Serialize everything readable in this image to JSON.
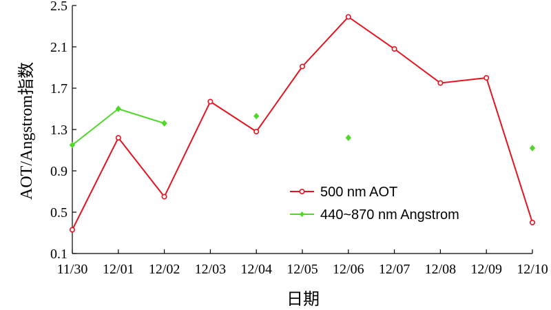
{
  "chart_data": {
    "type": "line",
    "xlabel": "日期",
    "ylabel": "AOT/Angstrom指数",
    "categories": [
      "11/30",
      "12/01",
      "12/02",
      "12/03",
      "12/04",
      "12/05",
      "12/06",
      "12/07",
      "12/08",
      "12/09",
      "12/10"
    ],
    "ylim": [
      0.1,
      2.5
    ],
    "yticks": [
      "0.1",
      "0.5",
      "0.9",
      "1.3",
      "1.7",
      "2.1",
      "2.5"
    ],
    "grid": false,
    "legend_position": "bottom-right",
    "series": [
      {
        "name": "500 nm AOT",
        "color": "#e8121e",
        "marker": "circle",
        "values": [
          0.33,
          1.22,
          0.65,
          1.57,
          1.28,
          1.91,
          2.39,
          2.08,
          1.75,
          1.8,
          0.4
        ]
      },
      {
        "name": "440~870 nm Angstrom",
        "color": "#4fd82a",
        "marker": "diamond",
        "values": [
          1.15,
          1.5,
          1.36,
          null,
          1.43,
          null,
          1.22,
          null,
          null,
          null,
          1.12
        ]
      }
    ]
  }
}
